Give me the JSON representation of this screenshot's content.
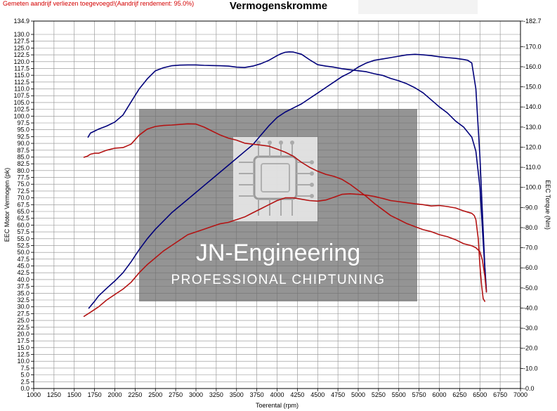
{
  "header": {
    "note": "Gemeten aandrijf verliezen toegevoegd!(Aandrijf rendement: 95.0%)"
  },
  "watermark": {
    "line1": "JN-Engineering",
    "line2": "PROFESSIONAL CHIPTUNING"
  },
  "chart_data": {
    "type": "line",
    "title": "Vermogenskromme",
    "xlabel": "Toerental (rpm)",
    "ylabel": "EEC Motor Vermogen (pk)",
    "y2label": "EEC Torque (Nm)",
    "xlim": [
      1000,
      7000
    ],
    "ylim": [
      0,
      134.9
    ],
    "y2lim": [
      0,
      182.7
    ],
    "grid": true,
    "x_ticks": [
      "1000",
      "1250",
      "1500",
      "1750",
      "2000",
      "2250",
      "2500",
      "2750",
      "3000",
      "3250",
      "3500",
      "3750",
      "4000",
      "4250",
      "4500",
      "4750",
      "5000",
      "5250",
      "5500",
      "5750",
      "6000",
      "6250",
      "6500",
      "6750",
      "7000"
    ],
    "y_ticks": [
      "0.0",
      "2.5",
      "5.0",
      "7.5",
      "10.0",
      "12.5",
      "15.0",
      "17.5",
      "20.0",
      "22.5",
      "25.0",
      "27.5",
      "30.0",
      "32.5",
      "35.0",
      "37.5",
      "40.0",
      "42.5",
      "45.0",
      "47.5",
      "50.0",
      "52.5",
      "55.0",
      "57.5",
      "60.0",
      "62.5",
      "65.0",
      "67.5",
      "70.0",
      "72.5",
      "75.0",
      "77.5",
      "80.0",
      "82.5",
      "85.0",
      "87.5",
      "90.0",
      "92.5",
      "95.0",
      "97.5",
      "100.0",
      "102.5",
      "105.0",
      "107.5",
      "110.0",
      "112.5",
      "115.0",
      "117.5",
      "120.0",
      "122.5",
      "125.0",
      "127.5",
      "130.0",
      "134.9"
    ],
    "y2_ticks": [
      "0.0",
      "10.0",
      "20.0",
      "30.0",
      "40.0",
      "50.0",
      "60.0",
      "70.0",
      "80.0",
      "90.0",
      "100.0",
      "110.0",
      "120.0",
      "130.0",
      "140.0",
      "150.0",
      "160.0",
      "170.0",
      "182.7"
    ],
    "series": [
      {
        "color": "#00007a",
        "axis": "right",
        "x": [
          1670,
          1700,
          1750,
          1800,
          1900,
          2000,
          2100,
          2200,
          2300,
          2400,
          2500,
          2600,
          2700,
          2800,
          2900,
          3000,
          3100,
          3200,
          3300,
          3400,
          3500,
          3600,
          3700,
          3800,
          3900,
          4000,
          4050,
          4100,
          4150,
          4200,
          4300,
          4400,
          4500,
          4600,
          4700,
          4800,
          4900,
          5000,
          5100,
          5200,
          5300,
          5400,
          5500,
          5600,
          5700,
          5800,
          5900,
          6000,
          6100,
          6200,
          6300,
          6400,
          6450,
          6500,
          6530,
          6560,
          6580
        ],
        "y": [
          125,
          127,
          128,
          129,
          130.5,
          132.5,
          136,
          142.5,
          149,
          154,
          158,
          159.5,
          160.5,
          160.8,
          160.9,
          160.9,
          160.7,
          160.6,
          160.5,
          160.3,
          159.8,
          159.6,
          160.3,
          161.5,
          163.2,
          165.5,
          166.5,
          167.2,
          167.4,
          167.3,
          166.2,
          163.5,
          161,
          160.3,
          159.8,
          159,
          158.5,
          158,
          157.5,
          156.5,
          155.7,
          154.2,
          153,
          151.5,
          149.5,
          147,
          143.5,
          140,
          137,
          133,
          130,
          125,
          118,
          100,
          80,
          60,
          48
        ]
      },
      {
        "color": "#00007a",
        "axis": "left",
        "x": [
          1680,
          1750,
          1800,
          1900,
          2000,
          2100,
          2200,
          2300,
          2400,
          2500,
          2600,
          2700,
          2800,
          2900,
          3000,
          3100,
          3200,
          3300,
          3400,
          3500,
          3600,
          3700,
          3800,
          3900,
          4000,
          4100,
          4200,
          4300,
          4400,
          4500,
          4600,
          4700,
          4800,
          4900,
          5000,
          5100,
          5200,
          5300,
          5400,
          5500,
          5600,
          5700,
          5800,
          5900,
          6000,
          6100,
          6200,
          6300,
          6350,
          6400,
          6450,
          6500,
          6530,
          6560,
          6580
        ],
        "y": [
          29.5,
          32,
          34,
          36.8,
          39.5,
          42.5,
          46.5,
          51,
          55,
          58.5,
          61.5,
          64.5,
          67,
          69.5,
          72,
          74.5,
          77,
          79.5,
          82,
          84.5,
          87,
          89.5,
          93,
          96.5,
          99.5,
          101.5,
          103,
          104.5,
          106.5,
          108.5,
          110.5,
          112.5,
          114.5,
          116,
          118,
          119.5,
          120.5,
          121,
          121.5,
          122,
          122.5,
          122.7,
          122.5,
          122.2,
          121.8,
          121.5,
          121.2,
          120.8,
          120.5,
          119.5,
          110,
          85,
          65,
          45,
          36
        ]
      },
      {
        "color": "#b31313",
        "axis": "right",
        "x": [
          1620,
          1660,
          1700,
          1750,
          1800,
          1900,
          2000,
          2100,
          2200,
          2300,
          2400,
          2500,
          2600,
          2700,
          2800,
          2900,
          3000,
          3100,
          3200,
          3300,
          3400,
          3500,
          3600,
          3700,
          3800,
          3900,
          4000,
          4100,
          4200,
          4300,
          4400,
          4500,
          4600,
          4700,
          4800,
          4900,
          5000,
          5100,
          5200,
          5300,
          5400,
          5500,
          5600,
          5700,
          5800,
          5900,
          6000,
          6100,
          6200,
          6300,
          6400,
          6450,
          6500,
          6530,
          6560,
          6580
        ],
        "y": [
          115,
          115.5,
          116.5,
          117,
          117,
          118.5,
          119.5,
          119.8,
          121.5,
          126,
          129,
          130.3,
          130.8,
          131,
          131.3,
          131.6,
          131.5,
          130,
          128,
          126,
          124.5,
          123.5,
          122,
          121.5,
          121,
          120.5,
          119,
          117.5,
          115.5,
          112.5,
          110,
          108,
          106.5,
          105.5,
          104,
          101.5,
          98.5,
          95.5,
          92,
          89,
          86,
          84,
          82,
          80.5,
          79,
          78,
          76.5,
          75.5,
          74,
          72,
          71,
          70,
          68,
          64,
          56,
          48
        ]
      },
      {
        "color": "#b31313",
        "axis": "left",
        "x": [
          1620,
          1700,
          1800,
          1900,
          2000,
          2100,
          2200,
          2300,
          2400,
          2500,
          2600,
          2700,
          2800,
          2900,
          3000,
          3100,
          3200,
          3300,
          3400,
          3500,
          3600,
          3700,
          3800,
          3900,
          4000,
          4100,
          4200,
          4300,
          4400,
          4500,
          4600,
          4700,
          4800,
          4900,
          5000,
          5100,
          5200,
          5300,
          5400,
          5500,
          5600,
          5700,
          5800,
          5900,
          6000,
          6100,
          6200,
          6300,
          6400,
          6430,
          6450,
          6480,
          6500,
          6520,
          6540,
          6560
        ],
        "y": [
          26.5,
          28,
          30,
          32.5,
          34.5,
          36.5,
          39,
          42.5,
          45.5,
          48,
          50.5,
          52.5,
          54.5,
          56.5,
          57.5,
          58.5,
          59.5,
          60.5,
          61,
          62,
          63,
          64.5,
          66,
          67.5,
          69,
          70,
          70,
          69.5,
          69,
          68.8,
          69.2,
          70.2,
          71.3,
          71.5,
          71.3,
          71,
          70.5,
          69.8,
          69,
          68.6,
          68.2,
          67.8,
          67.5,
          67,
          67.2,
          66.8,
          66.3,
          65.2,
          64.3,
          63.5,
          62,
          55,
          45,
          38,
          33,
          32
        ]
      }
    ]
  }
}
